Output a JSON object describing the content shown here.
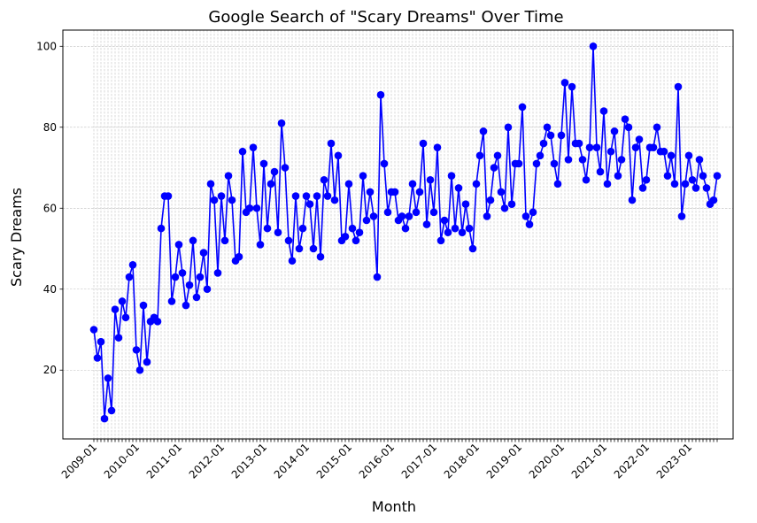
{
  "chart_data": {
    "type": "line",
    "title": "Google Search of \"Scary Dreams\" Over Time",
    "xlabel": "Month",
    "ylabel": "Scary Dreams",
    "ylim": [
      3,
      104
    ],
    "yticks": [
      20,
      40,
      60,
      80,
      100
    ],
    "grid": true,
    "line_color": "#0000ff",
    "marker": "circle",
    "x_start": "2009-01",
    "x_tick_labels": [
      "2009-01",
      "2010-01",
      "2011-01",
      "2012-01",
      "2013-01",
      "2014-01",
      "2015-01",
      "2016-01",
      "2017-01",
      "2018-01",
      "2019-01",
      "2020-01",
      "2021-01",
      "2022-01",
      "2023-01"
    ],
    "series": [
      {
        "values": [
          30,
          23,
          27,
          8,
          18,
          10,
          35,
          28,
          37,
          33,
          43,
          46,
          25,
          20,
          36,
          22,
          32,
          33,
          32,
          55,
          63,
          63,
          37,
          43,
          51,
          44,
          36,
          41,
          52,
          38,
          43,
          49,
          40,
          66,
          62,
          44,
          63,
          52,
          68,
          62,
          47,
          48,
          74,
          59,
          60,
          75,
          60,
          51,
          71,
          55,
          66,
          69,
          54,
          81,
          70,
          52,
          47,
          63,
          50,
          55,
          63,
          61,
          50,
          63,
          48,
          67,
          63,
          76,
          62,
          73,
          52,
          53,
          66,
          55,
          52,
          54,
          68,
          57,
          64,
          58,
          43,
          88,
          71,
          59,
          64,
          64,
          57,
          58,
          55,
          58,
          66,
          59,
          64,
          76,
          56,
          67,
          59,
          75,
          52,
          57,
          54,
          68,
          55,
          65,
          54,
          61,
          55,
          50,
          66,
          73,
          79,
          58,
          62,
          70,
          73,
          64,
          60,
          80,
          61,
          71,
          71,
          85,
          58,
          56,
          59,
          71,
          73,
          76,
          80,
          78,
          71,
          66,
          78,
          91,
          72,
          90,
          76,
          76,
          72,
          67,
          75,
          100,
          75,
          69,
          84,
          66,
          74,
          79,
          68,
          72,
          82,
          80,
          62,
          75,
          77,
          65,
          67,
          75,
          75,
          80,
          74,
          74,
          68,
          73,
          66,
          90,
          58,
          66,
          73,
          67,
          65,
          72,
          68,
          65,
          61,
          62,
          68
        ]
      }
    ]
  }
}
